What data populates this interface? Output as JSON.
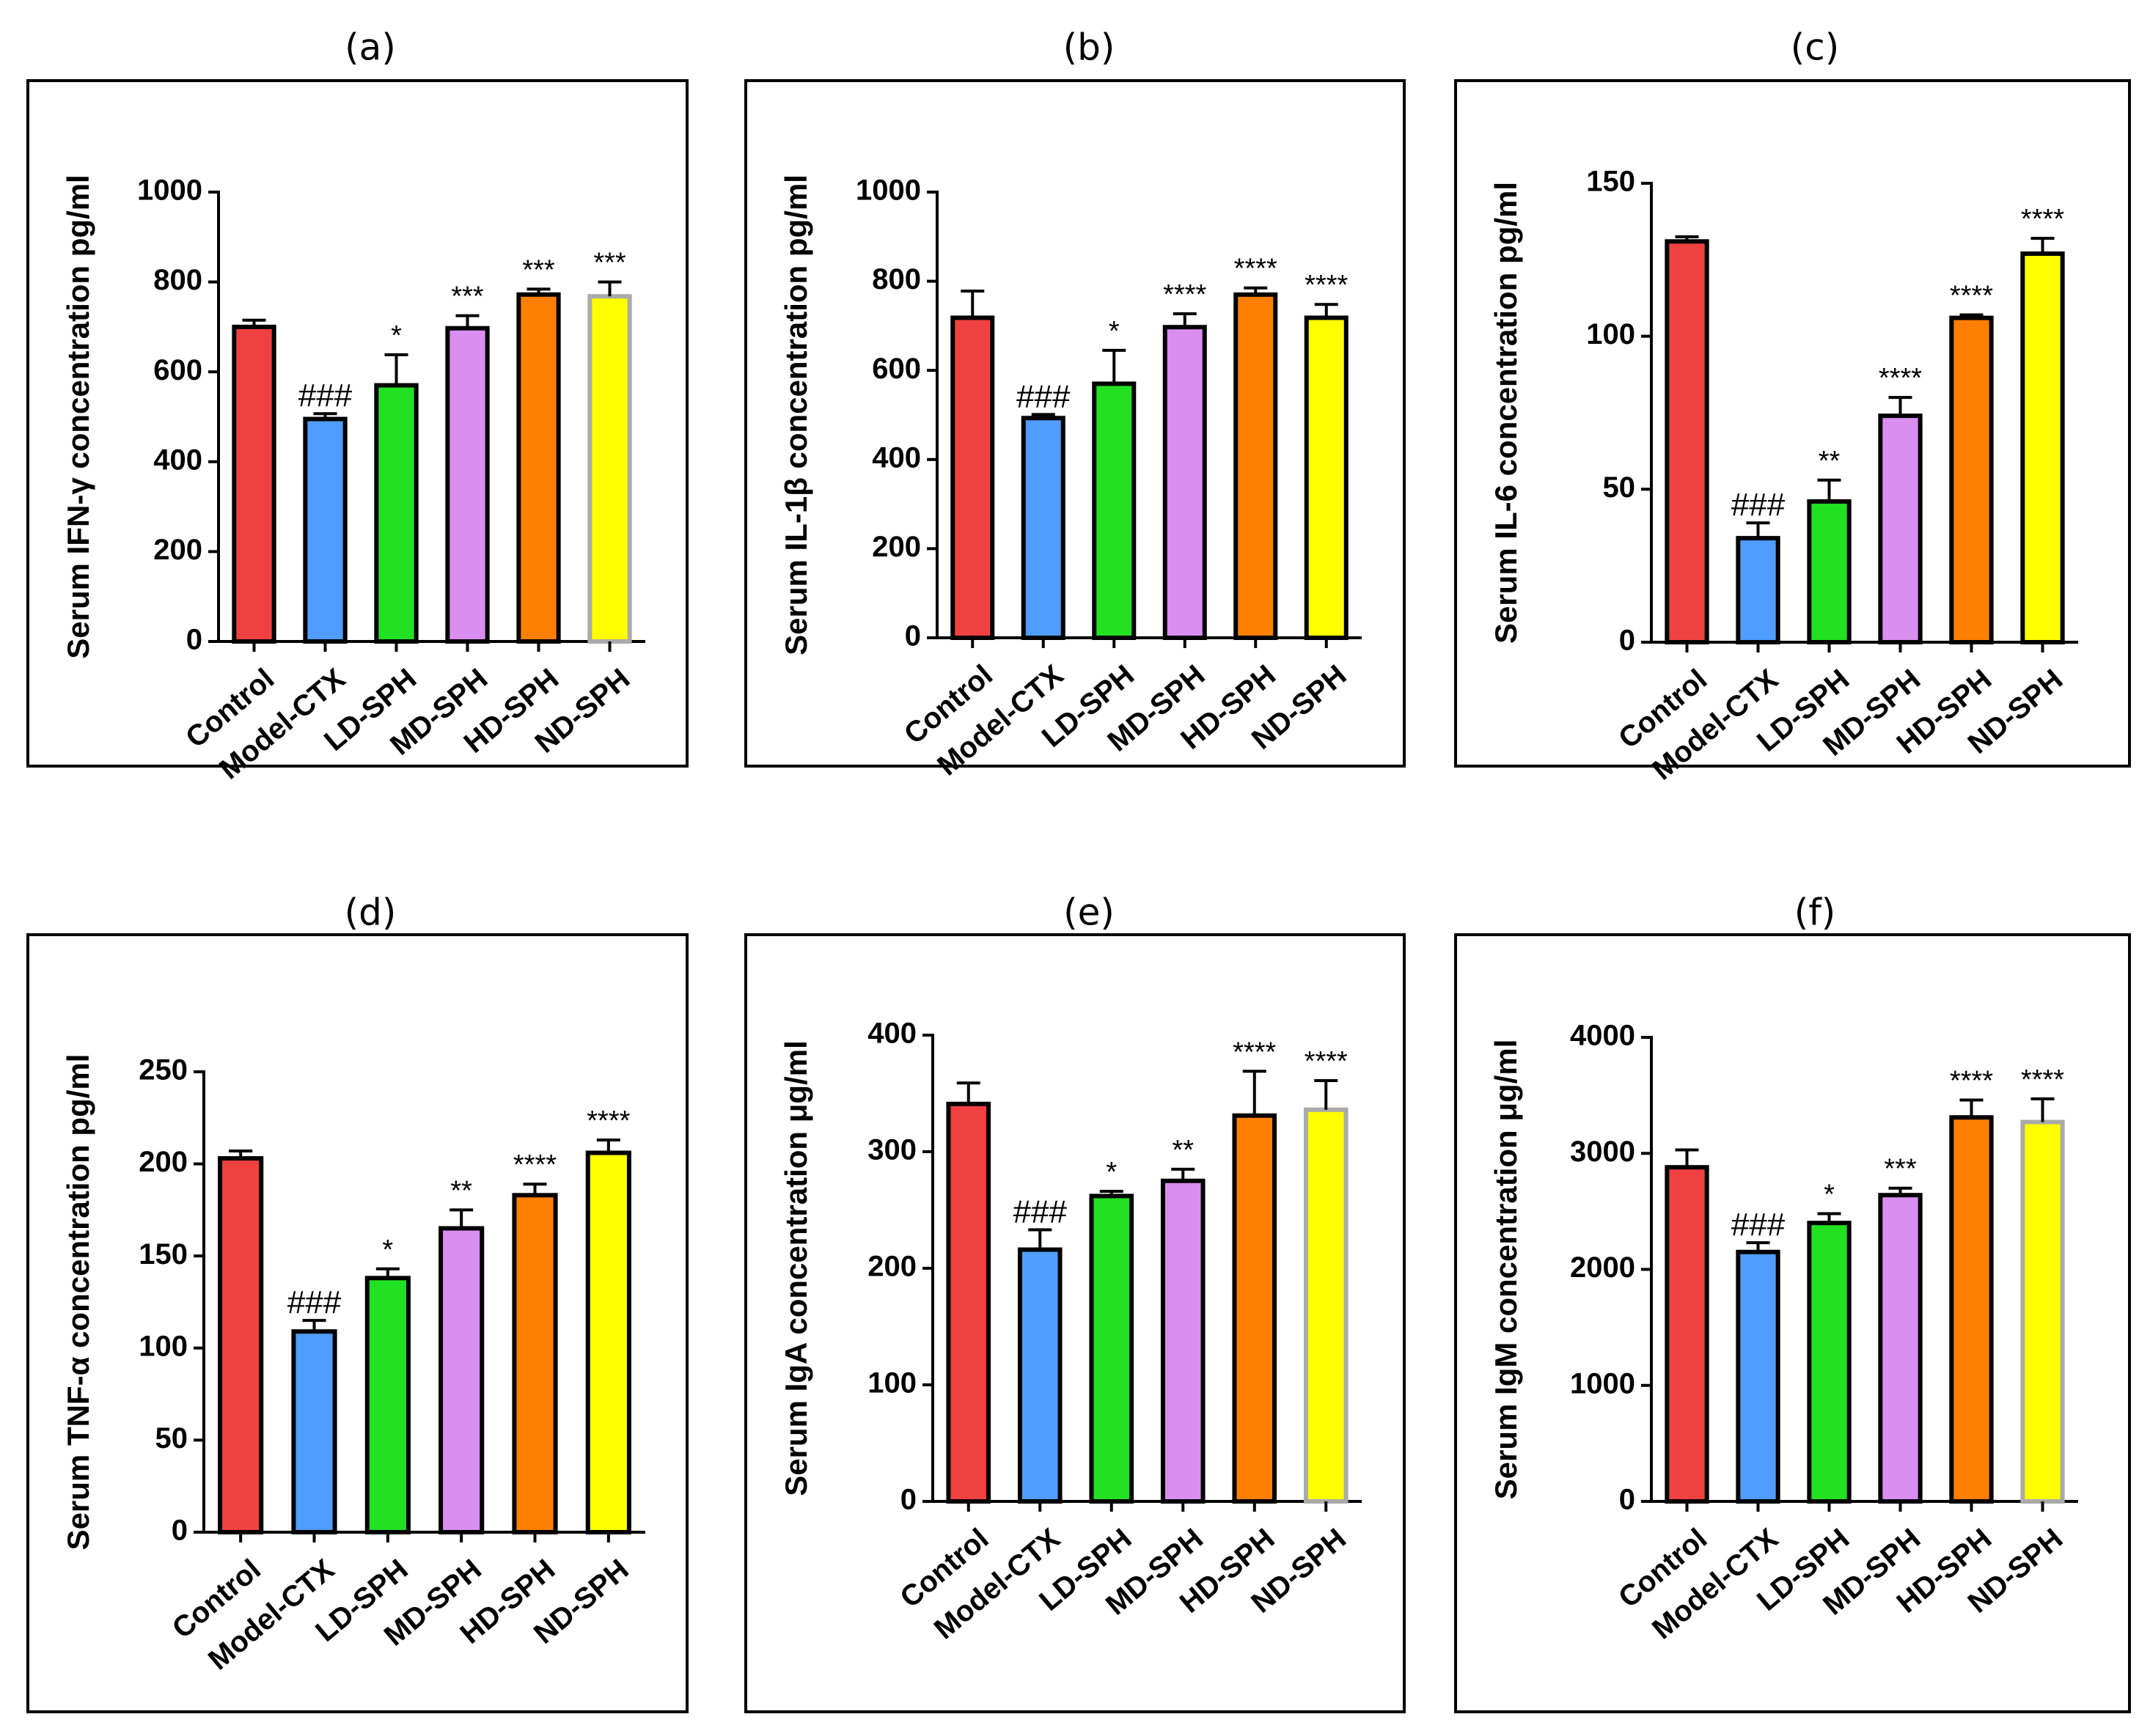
{
  "figure": {
    "categories": [
      "Control",
      "Model-CTX",
      "LD-SPH",
      "MD-SPH",
      "HD-SPH",
      "ND-SPH"
    ],
    "colors": [
      "#f04141",
      "#4f9dff",
      "#22e022",
      "#d98ef0",
      "#ff7f00",
      "#ffff00"
    ]
  },
  "chart_data": [
    {
      "type": "bar",
      "panel": "(a)",
      "ylabel": "Serum IFN-γ  concentration pg/ml",
      "ylim": [
        0,
        1000
      ],
      "yticks": [
        0,
        200,
        400,
        600,
        800,
        1000
      ],
      "categories": [
        "Control",
        "Model-CTX",
        "LD-SPH",
        "MD-SPH",
        "HD-SPH",
        "ND-SPH"
      ],
      "values": [
        700,
        495,
        570,
        697,
        772,
        768
      ],
      "errors": [
        15,
        12,
        68,
        28,
        12,
        32
      ],
      "annotations": [
        "",
        "###",
        "*",
        "***",
        "***",
        "***"
      ],
      "last_bar_outline": "#aaaaaa"
    },
    {
      "type": "bar",
      "panel": "(b)",
      "ylabel": "Serum IL-1β  concentration pg/ml",
      "ylim": [
        0,
        1000
      ],
      "yticks": [
        0,
        200,
        400,
        600,
        800,
        1000
      ],
      "categories": [
        "Control",
        "Model-CTX",
        "LD-SPH",
        "MD-SPH",
        "HD-SPH",
        "ND-SPH"
      ],
      "values": [
        718,
        493,
        570,
        697,
        770,
        718
      ],
      "errors": [
        60,
        8,
        75,
        30,
        15,
        30
      ],
      "annotations": [
        "",
        "###",
        "*",
        "****",
        "****",
        "****"
      ],
      "last_bar_outline": "#000000"
    },
    {
      "type": "bar",
      "panel": "(c)",
      "ylabel": "Serum IL-6  concentration pg/ml",
      "ylim": [
        0,
        150
      ],
      "yticks": [
        0,
        50,
        100,
        150
      ],
      "categories": [
        "Control",
        "Model-CTX",
        "LD-SPH",
        "MD-SPH",
        "HD-SPH",
        "ND-SPH"
      ],
      "values": [
        131,
        34,
        46,
        74,
        106,
        127
      ],
      "errors": [
        1.5,
        5,
        7,
        6,
        1,
        5
      ],
      "annotations": [
        "",
        "###",
        "**",
        "****",
        "****",
        "****"
      ],
      "last_bar_outline": "#000000"
    },
    {
      "type": "bar",
      "panel": "(d)",
      "ylabel": "Serum TNF-α  concentration pg/ml",
      "ylim": [
        0,
        250
      ],
      "yticks": [
        0,
        50,
        100,
        150,
        200,
        250
      ],
      "categories": [
        "Control",
        "Model-CTX",
        "LD-SPH",
        "MD-SPH",
        "HD-SPH",
        "ND-SPH"
      ],
      "values": [
        203,
        109,
        138,
        165,
        183,
        206
      ],
      "errors": [
        4,
        6,
        5,
        10,
        6,
        7
      ],
      "annotations": [
        "",
        "###",
        "*",
        "**",
        "****",
        "****"
      ],
      "last_bar_outline": "#000000"
    },
    {
      "type": "bar",
      "panel": "(e)",
      "ylabel": "Serum IgA concentration μg/ml",
      "ylim": [
        0,
        400
      ],
      "yticks": [
        0,
        100,
        200,
        300,
        400
      ],
      "categories": [
        "Control",
        "Model-CTX",
        "LD-SPH",
        "MD-SPH",
        "HD-SPH",
        "ND-SPH"
      ],
      "values": [
        341,
        216,
        262,
        275,
        331,
        336
      ],
      "errors": [
        18,
        17,
        4,
        10,
        38,
        25
      ],
      "annotations": [
        "",
        "###",
        "*",
        "**",
        "****",
        "****"
      ],
      "last_bar_outline": "#aaaaaa"
    },
    {
      "type": "bar",
      "panel": "(f)",
      "ylabel": "Serum IgM concentration μg/ml",
      "ylim": [
        0,
        4000
      ],
      "yticks": [
        0,
        1000,
        2000,
        3000,
        4000
      ],
      "categories": [
        "Control",
        "Model-CTX",
        "LD-SPH",
        "MD-SPH",
        "HD-SPH",
        "ND-SPH"
      ],
      "values": [
        2880,
        2150,
        2400,
        2640,
        3310,
        3270
      ],
      "errors": [
        150,
        80,
        80,
        60,
        150,
        200
      ],
      "annotations": [
        "",
        "###",
        "*",
        "***",
        "****",
        "****"
      ],
      "last_bar_outline": "#aaaaaa"
    }
  ]
}
